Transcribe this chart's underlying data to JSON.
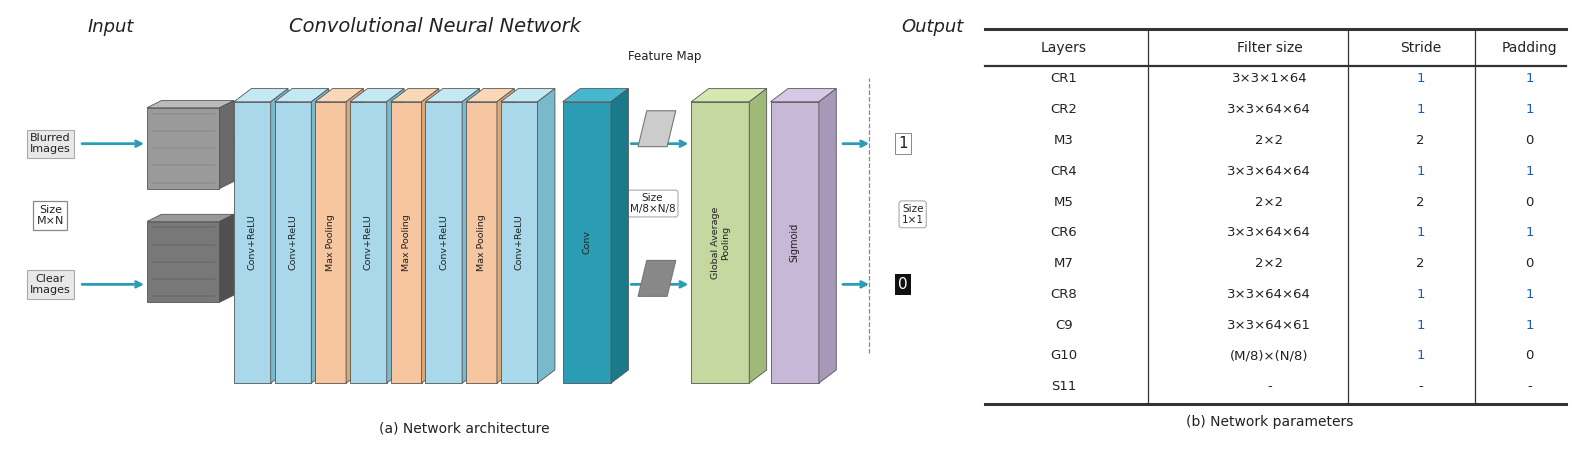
{
  "title_cnn": "Convolutional Neural Network",
  "title_input": "Input",
  "title_output": "Output",
  "subtitle_a": "(a) Network architecture",
  "subtitle_b": "(b) Network parameters",
  "input_labels": [
    "Blurred\nImages",
    "Size\nM×N",
    "Clear\nImages"
  ],
  "layer_labels": [
    "Conv+ReLU",
    "Conv+ReLU",
    "Max Pooling",
    "Conv+ReLU",
    "Max Pooling",
    "Conv+ReLU",
    "Max Pooling",
    "Conv+ReLU",
    "Conv"
  ],
  "feature_map_label": "Feature Map",
  "size_label": "Size\nM/8×N/8",
  "size_label2": "Size\n1×1",
  "gap_label": "Global Average\nPooling",
  "sigmoid_label": "Sigmoid",
  "table_headers": [
    "Layers",
    "Filter size",
    "Stride",
    "Padding"
  ],
  "table_rows": [
    [
      "CR1",
      "3×3×1×64",
      "1",
      "1"
    ],
    [
      "CR2",
      "3×3×64×64",
      "1",
      "1"
    ],
    [
      "M3",
      "2×2",
      "2",
      "0"
    ],
    [
      "CR4",
      "3×3×64×64",
      "1",
      "1"
    ],
    [
      "M5",
      "2×2",
      "2",
      "0"
    ],
    [
      "CR6",
      "3×3×64×64",
      "1",
      "1"
    ],
    [
      "M7",
      "2×2",
      "2",
      "0"
    ],
    [
      "CR8",
      "3×3×64×64",
      "1",
      "1"
    ],
    [
      "C9",
      "3×3×64×61",
      "1",
      "1"
    ],
    [
      "G10",
      "(M/8)×(N/8)",
      "1",
      "0"
    ],
    [
      "S11",
      "-",
      "-",
      "-"
    ]
  ],
  "arrow_color": "#2a9db5",
  "face_colors": [
    "#a8d8ea",
    "#a8d8ea",
    "#f5c6a0",
    "#a8d8ea",
    "#f5c6a0",
    "#a8d8ea",
    "#f5c6a0",
    "#a8d8ea",
    "#2a9db5"
  ],
  "top_colors": [
    "#c5e8f5",
    "#c5e8f5",
    "#f8d8b8",
    "#c5e8f5",
    "#f8d8b8",
    "#c5e8f5",
    "#f8d8b8",
    "#c5e8f5",
    "#45b8d0"
  ],
  "side_colors": [
    "#7ab8cc",
    "#7ab8cc",
    "#d8a878",
    "#7ab8cc",
    "#d8a878",
    "#7ab8cc",
    "#d8a878",
    "#7ab8cc",
    "#1a7a8a"
  ],
  "gap_face": "#c5d8a0",
  "gap_top": "#d5e8b0",
  "gap_side": "#a0b878",
  "sig_face": "#c8b8d8",
  "sig_top": "#d8c8e8",
  "sig_side": "#a898b8",
  "bg_color": "#ffffff",
  "table_line_color": "#333333",
  "text_color": "#222222",
  "blue_highlight": "#1a5fb5"
}
